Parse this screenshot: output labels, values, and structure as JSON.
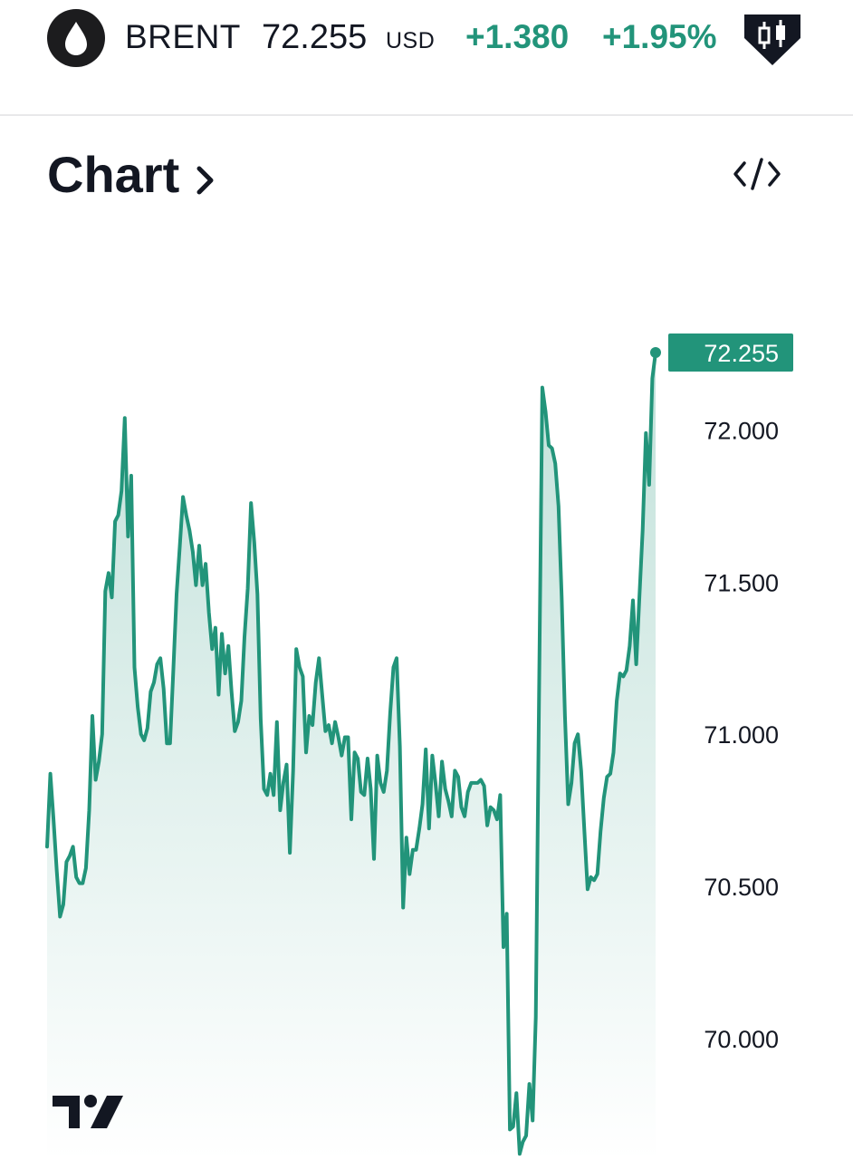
{
  "header": {
    "icon": "oil-drop-icon",
    "symbol": "BRENT",
    "price": "72.255",
    "currency": "USD",
    "change": "+1.380",
    "change_percent": "+1.95%",
    "candles_icon": "candlestick-icon",
    "change_color": "#22947a"
  },
  "section": {
    "title": "Chart",
    "chevron_icon": "chevron-right-icon",
    "embed_icon": "code-embed-icon"
  },
  "brand": {
    "logo": "tradingview-logo"
  },
  "chart_data": {
    "type": "area",
    "symbol": "BRENT",
    "line_color": "#22947a",
    "fill_color": "#22947a",
    "ylim": [
      69.6,
      72.55
    ],
    "yticks": [
      "72.000",
      "71.500",
      "71.000",
      "70.500",
      "70.000"
    ],
    "ytick_values": [
      72.0,
      71.5,
      71.0,
      70.5,
      70.0
    ],
    "last_value": 72.255,
    "last_value_label": "72.255",
    "y_axis_position": "right",
    "grid": false,
    "values": [
      70.63,
      70.87,
      70.72,
      70.55,
      70.4,
      70.44,
      70.58,
      70.6,
      70.63,
      70.53,
      70.51,
      70.51,
      70.56,
      70.75,
      71.06,
      70.85,
      70.91,
      71.0,
      71.47,
      71.53,
      71.45,
      71.7,
      71.72,
      71.8,
      72.04,
      71.65,
      71.85,
      71.22,
      71.09,
      71.0,
      70.98,
      71.02,
      71.14,
      71.17,
      71.23,
      71.25,
      71.15,
      70.97,
      70.97,
      71.21,
      71.46,
      71.62,
      71.78,
      71.72,
      71.67,
      71.6,
      71.49,
      71.62,
      71.49,
      71.56,
      71.4,
      71.28,
      71.35,
      71.13,
      71.33,
      71.2,
      71.29,
      71.14,
      71.01,
      71.04,
      71.11,
      71.32,
      71.48,
      71.76,
      71.63,
      71.46,
      71.05,
      70.82,
      70.8,
      70.87,
      70.8,
      71.04,
      70.75,
      70.84,
      70.9,
      70.61,
      70.88,
      71.28,
      71.22,
      71.19,
      70.94,
      71.06,
      71.03,
      71.17,
      71.25,
      71.13,
      71.01,
      71.03,
      70.97,
      71.04,
      70.99,
      70.93,
      70.99,
      70.99,
      70.72,
      70.94,
      70.92,
      70.81,
      70.8,
      70.92,
      70.82,
      70.59,
      70.93,
      70.84,
      70.81,
      70.88,
      71.07,
      71.22,
      71.25,
      70.96,
      70.43,
      70.66,
      70.54,
      70.62,
      70.62,
      70.69,
      70.77,
      70.95,
      70.69,
      70.93,
      70.84,
      70.73,
      70.91,
      70.82,
      70.78,
      70.73,
      70.88,
      70.86,
      70.76,
      70.73,
      70.81,
      70.84,
      70.84,
      70.84,
      70.85,
      70.83,
      70.7,
      70.76,
      70.75,
      70.72,
      70.8,
      70.3,
      70.41,
      69.7,
      69.71,
      69.82,
      69.62,
      69.66,
      69.68,
      69.85,
      69.73,
      70.07,
      71.13,
      72.14,
      72.06,
      71.95,
      71.94,
      71.89,
      71.75,
      71.45,
      71.06,
      70.77,
      70.84,
      70.97,
      71.0,
      70.88,
      70.68,
      70.49,
      70.53,
      70.52,
      70.54,
      70.68,
      70.79,
      70.86,
      70.87,
      70.94,
      71.11,
      71.2,
      71.19,
      71.21,
      71.29,
      71.44,
      71.23,
      71.45,
      71.67,
      71.99,
      71.82,
      72.17,
      72.255
    ]
  }
}
